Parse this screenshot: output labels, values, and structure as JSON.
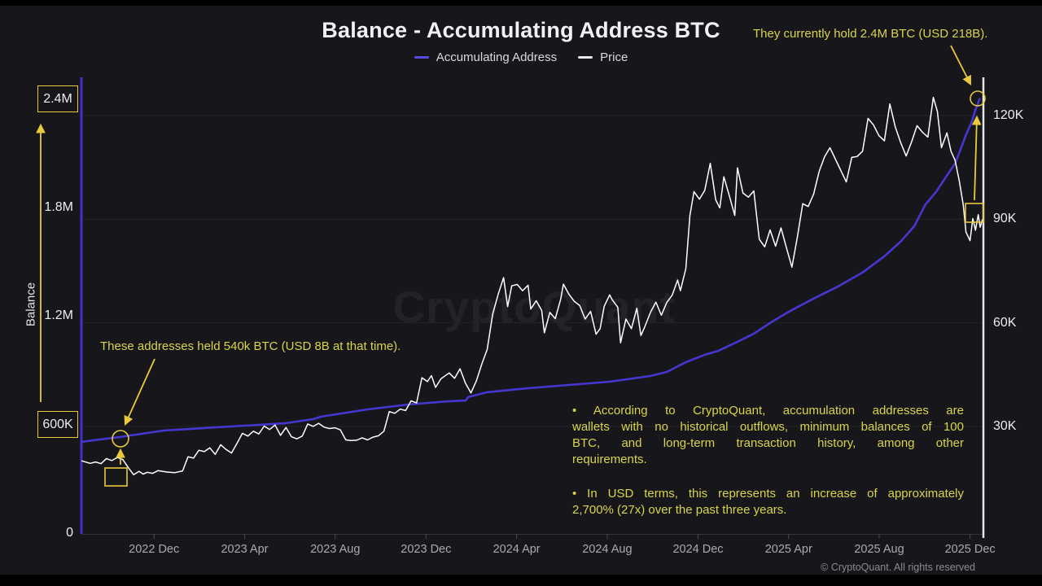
{
  "title": "Balance - Accumulating Address BTC",
  "legend": [
    {
      "label": "Accumulating Address",
      "color": "#5a4ae0"
    },
    {
      "label": "Price",
      "color": "#e8e8ec"
    }
  ],
  "watermark": "CryptoQuant",
  "footer": {
    "copyright": "© CryptoQuant. All rights reserved"
  },
  "annotations": {
    "current": "They currently hold 2.4M BTC (USD 218B).",
    "past": "These addresses held 540k BTC (USD 8B at that time).",
    "bullet1_lines": [
      "• According to CryptoQuant, accumulation addresses are",
      "wallets with no historical outflows, minimum balances of 100",
      "BTC, and long-term transaction history, among other",
      "requirements."
    ],
    "bullet2_lines": [
      "• In USD terms, this represents an increase of approximately",
      "2,700% (27x) over the past three years."
    ]
  },
  "colors": {
    "background": "#17171b",
    "grid": "#232329",
    "accumulating_line": "#4636d2",
    "price_line": "#ffffff",
    "annotation_text": "#d8d44c",
    "annotation_shapes": "#eac93d",
    "left_axis": "#4132c4",
    "right_axis": "#e8e8ec"
  },
  "chart_data": {
    "type": "line",
    "title": "Balance - Accumulating Address BTC",
    "x_axis": {
      "lim": [
        2022.648,
        2025.964
      ],
      "ticks": [
        {
          "label": "2022 Dec",
          "v": 2022.915
        },
        {
          "label": "2023 Apr",
          "v": 2023.248
        },
        {
          "label": "2023 Aug",
          "v": 2023.581
        },
        {
          "label": "2023 Dec",
          "v": 2023.915
        },
        {
          "label": "2024 Apr",
          "v": 2024.248
        },
        {
          "label": "2024 Aug",
          "v": 2024.581
        },
        {
          "label": "2024 Dec",
          "v": 2024.915
        },
        {
          "label": "2025 Apr",
          "v": 2025.248
        },
        {
          "label": "2025 Aug",
          "v": 2025.581
        },
        {
          "label": "2025 Dec",
          "v": 2025.915
        }
      ]
    },
    "balance_axis": {
      "label": "Balance",
      "unit": "BTC (millions)",
      "lim": [
        0,
        2.52
      ],
      "ticks": [
        {
          "label": "2.4M",
          "v": 2.4,
          "boxed": true
        },
        {
          "label": "1.8M",
          "v": 1.8
        },
        {
          "label": "1.2M",
          "v": 1.2
        },
        {
          "label": "600K",
          "v": 0.6,
          "boxed": true
        },
        {
          "label": "0",
          "v": 0
        }
      ]
    },
    "price_axis": {
      "unit": "USD (thousands)",
      "lim": [
        -0.9,
        131.1
      ],
      "ticks": [
        {
          "label": "120K",
          "v": 120
        },
        {
          "label": "90K",
          "v": 90
        },
        {
          "label": "60K",
          "v": 60
        },
        {
          "label": "30K",
          "v": 30
        }
      ]
    },
    "series": [
      {
        "name": "Accumulating Address",
        "axis": "balance",
        "color": "#4636d2",
        "points": [
          [
            2022.648,
            0.504
          ],
          [
            2022.7,
            0.515
          ],
          [
            2022.75,
            0.524
          ],
          [
            2022.79,
            0.531
          ],
          [
            2022.87,
            0.549
          ],
          [
            2022.95,
            0.567
          ],
          [
            2023.1,
            0.581
          ],
          [
            2023.25,
            0.594
          ],
          [
            2023.4,
            0.608
          ],
          [
            2023.5,
            0.63
          ],
          [
            2023.53,
            0.644
          ],
          [
            2023.7,
            0.684
          ],
          [
            2023.85,
            0.711
          ],
          [
            2024,
            0.729
          ],
          [
            2024.06,
            0.733
          ],
          [
            2024.07,
            0.752
          ],
          [
            2024.14,
            0.779
          ],
          [
            2024.29,
            0.801
          ],
          [
            2024.44,
            0.819
          ],
          [
            2024.59,
            0.837
          ],
          [
            2024.74,
            0.869
          ],
          [
            2024.8,
            0.891
          ],
          [
            2024.87,
            0.945
          ],
          [
            2024.94,
            0.986
          ],
          [
            2024.99,
            1.008
          ],
          [
            2025.06,
            1.058
          ],
          [
            2025.12,
            1.103
          ],
          [
            2025.18,
            1.162
          ],
          [
            2025.25,
            1.225
          ],
          [
            2025.34,
            1.297
          ],
          [
            2025.43,
            1.364
          ],
          [
            2025.52,
            1.441
          ],
          [
            2025.6,
            1.531
          ],
          [
            2025.66,
            1.612
          ],
          [
            2025.71,
            1.697
          ],
          [
            2025.75,
            1.815
          ],
          [
            2025.79,
            1.887
          ],
          [
            2025.83,
            1.977
          ],
          [
            2025.86,
            2.044
          ],
          [
            2025.88,
            2.121
          ],
          [
            2025.9,
            2.202
          ],
          [
            2025.92,
            2.269
          ],
          [
            2025.934,
            2.337
          ],
          [
            2025.95,
            2.4
          ]
        ]
      },
      {
        "name": "Price",
        "axis": "price",
        "color": "#ffffff",
        "points": [
          [
            2022.65,
            20
          ],
          [
            2022.68,
            19.3
          ],
          [
            2022.7,
            19.7
          ],
          [
            2022.72,
            19.2
          ],
          [
            2022.74,
            20.7
          ],
          [
            2022.76,
            20.1
          ],
          [
            2022.78,
            21
          ],
          [
            2022.8,
            20.4
          ],
          [
            2022.82,
            18.1
          ],
          [
            2022.84,
            16
          ],
          [
            2022.86,
            17
          ],
          [
            2022.875,
            16.2
          ],
          [
            2022.89,
            16.7
          ],
          [
            2022.91,
            16.4
          ],
          [
            2022.93,
            17.2
          ],
          [
            2022.96,
            16.8
          ],
          [
            2022.99,
            16.6
          ],
          [
            2023.02,
            17.1
          ],
          [
            2023.04,
            21.2
          ],
          [
            2023.06,
            20.8
          ],
          [
            2023.08,
            23.1
          ],
          [
            2023.1,
            22.7
          ],
          [
            2023.12,
            23.8
          ],
          [
            2023.14,
            21.9
          ],
          [
            2023.16,
            24.7
          ],
          [
            2023.18,
            23.3
          ],
          [
            2023.2,
            22.3
          ],
          [
            2023.22,
            25.1
          ],
          [
            2023.24,
            28
          ],
          [
            2023.26,
            27.2
          ],
          [
            2023.28,
            28.6
          ],
          [
            2023.3,
            27.8
          ],
          [
            2023.32,
            30.1
          ],
          [
            2023.34,
            29.1
          ],
          [
            2023.36,
            30.4
          ],
          [
            2023.38,
            27.4
          ],
          [
            2023.4,
            29.7
          ],
          [
            2023.42,
            27
          ],
          [
            2023.44,
            26.4
          ],
          [
            2023.46,
            27.2
          ],
          [
            2023.48,
            30.7
          ],
          [
            2023.5,
            30
          ],
          [
            2023.52,
            30.9
          ],
          [
            2023.54,
            29.8
          ],
          [
            2023.56,
            29.4
          ],
          [
            2023.58,
            29.6
          ],
          [
            2023.6,
            29
          ],
          [
            2023.62,
            26.1
          ],
          [
            2023.64,
            25.9
          ],
          [
            2023.66,
            26
          ],
          [
            2023.68,
            26.7
          ],
          [
            2023.7,
            26.1
          ],
          [
            2023.72,
            26.9
          ],
          [
            2023.74,
            27.3
          ],
          [
            2023.76,
            28.6
          ],
          [
            2023.78,
            34.3
          ],
          [
            2023.8,
            33.8
          ],
          [
            2023.82,
            35
          ],
          [
            2023.84,
            34.6
          ],
          [
            2023.86,
            37.4
          ],
          [
            2023.88,
            36.8
          ],
          [
            2023.9,
            44.1
          ],
          [
            2023.92,
            43
          ],
          [
            2023.935,
            44.7
          ],
          [
            2023.95,
            41.3
          ],
          [
            2023.97,
            43.8
          ],
          [
            2024,
            45.5
          ],
          [
            2024.02,
            43.9
          ],
          [
            2024.04,
            46.7
          ],
          [
            2024.06,
            42.5
          ],
          [
            2024.08,
            39.7
          ],
          [
            2024.1,
            43.2
          ],
          [
            2024.12,
            48.1
          ],
          [
            2024.14,
            52.3
          ],
          [
            2024.16,
            62.5
          ],
          [
            2024.18,
            68.2
          ],
          [
            2024.2,
            73.1
          ],
          [
            2024.215,
            64.7
          ],
          [
            2024.23,
            70.7
          ],
          [
            2024.25,
            71.1
          ],
          [
            2024.27,
            69.3
          ],
          [
            2024.29,
            70.9
          ],
          [
            2024.3,
            64
          ],
          [
            2024.32,
            66.4
          ],
          [
            2024.34,
            63.6
          ],
          [
            2024.35,
            57.1
          ],
          [
            2024.37,
            63
          ],
          [
            2024.39,
            61.2
          ],
          [
            2024.41,
            66.9
          ],
          [
            2024.42,
            71.2
          ],
          [
            2024.44,
            68.3
          ],
          [
            2024.46,
            66.2
          ],
          [
            2024.48,
            65
          ],
          [
            2024.5,
            61.1
          ],
          [
            2024.52,
            63.3
          ],
          [
            2024.54,
            56.7
          ],
          [
            2024.555,
            58.3
          ],
          [
            2024.57,
            64.8
          ],
          [
            2024.59,
            68.1
          ],
          [
            2024.6,
            66.6
          ],
          [
            2024.62,
            64.5
          ],
          [
            2024.63,
            54.2
          ],
          [
            2024.65,
            61.1
          ],
          [
            2024.67,
            58.3
          ],
          [
            2024.69,
            64.2
          ],
          [
            2024.705,
            56.3
          ],
          [
            2024.72,
            59
          ],
          [
            2024.74,
            63
          ],
          [
            2024.76,
            66
          ],
          [
            2024.78,
            62.2
          ],
          [
            2024.8,
            65.9
          ],
          [
            2024.82,
            68
          ],
          [
            2024.84,
            72.4
          ],
          [
            2024.85,
            69.3
          ],
          [
            2024.87,
            75.7
          ],
          [
            2024.885,
            91.1
          ],
          [
            2024.9,
            98
          ],
          [
            2024.92,
            95.8
          ],
          [
            2024.94,
            98.4
          ],
          [
            2024.96,
            106.2
          ],
          [
            2024.98,
            95.6
          ],
          [
            2024.995,
            93.3
          ],
          [
            2025.01,
            102.3
          ],
          [
            2025.03,
            96.8
          ],
          [
            2025.05,
            91.1
          ],
          [
            2025.06,
            104.9
          ],
          [
            2025.08,
            97.6
          ],
          [
            2025.1,
            96.4
          ],
          [
            2025.12,
            98.2
          ],
          [
            2025.14,
            84.2
          ],
          [
            2025.16,
            82
          ],
          [
            2025.18,
            86.9
          ],
          [
            2025.2,
            82.2
          ],
          [
            2025.22,
            87.5
          ],
          [
            2025.24,
            81.7
          ],
          [
            2025.26,
            76.1
          ],
          [
            2025.28,
            84.7
          ],
          [
            2025.3,
            94.5
          ],
          [
            2025.32,
            93.7
          ],
          [
            2025.34,
            97.3
          ],
          [
            2025.36,
            103.8
          ],
          [
            2025.38,
            108.1
          ],
          [
            2025.4,
            110.7
          ],
          [
            2025.42,
            107.4
          ],
          [
            2025.44,
            104.1
          ],
          [
            2025.46,
            100.8
          ],
          [
            2025.48,
            107.9
          ],
          [
            2025.5,
            108.2
          ],
          [
            2025.52,
            109.7
          ],
          [
            2025.54,
            119.2
          ],
          [
            2025.56,
            117.3
          ],
          [
            2025.58,
            114.2
          ],
          [
            2025.6,
            112.7
          ],
          [
            2025.62,
            123.4
          ],
          [
            2025.64,
            116.8
          ],
          [
            2025.66,
            112.2
          ],
          [
            2025.68,
            108.3
          ],
          [
            2025.7,
            112.4
          ],
          [
            2025.72,
            117.1
          ],
          [
            2025.74,
            115.2
          ],
          [
            2025.76,
            113.8
          ],
          [
            2025.78,
            125.3
          ],
          [
            2025.795,
            121.2
          ],
          [
            2025.81,
            110.7
          ],
          [
            2025.83,
            115
          ],
          [
            2025.845,
            109.7
          ],
          [
            2025.86,
            107.1
          ],
          [
            2025.875,
            101.2
          ],
          [
            2025.89,
            94.1
          ],
          [
            2025.9,
            86.3
          ],
          [
            2025.915,
            83.8
          ],
          [
            2025.925,
            90.2
          ],
          [
            2025.935,
            86.8
          ],
          [
            2025.945,
            91.3
          ],
          [
            2025.952,
            87.7
          ],
          [
            2025.96,
            89.8
          ]
        ]
      }
    ],
    "annotations": [
      {
        "text": "These addresses held 540k BTC (USD 8B at that time).",
        "target": {
          "x": 2022.79,
          "balance": 0.54
        }
      },
      {
        "text": "They currently hold 2.4M BTC (USD 218B).",
        "target": {
          "x": 2025.95,
          "balance": 2.4
        }
      }
    ]
  }
}
